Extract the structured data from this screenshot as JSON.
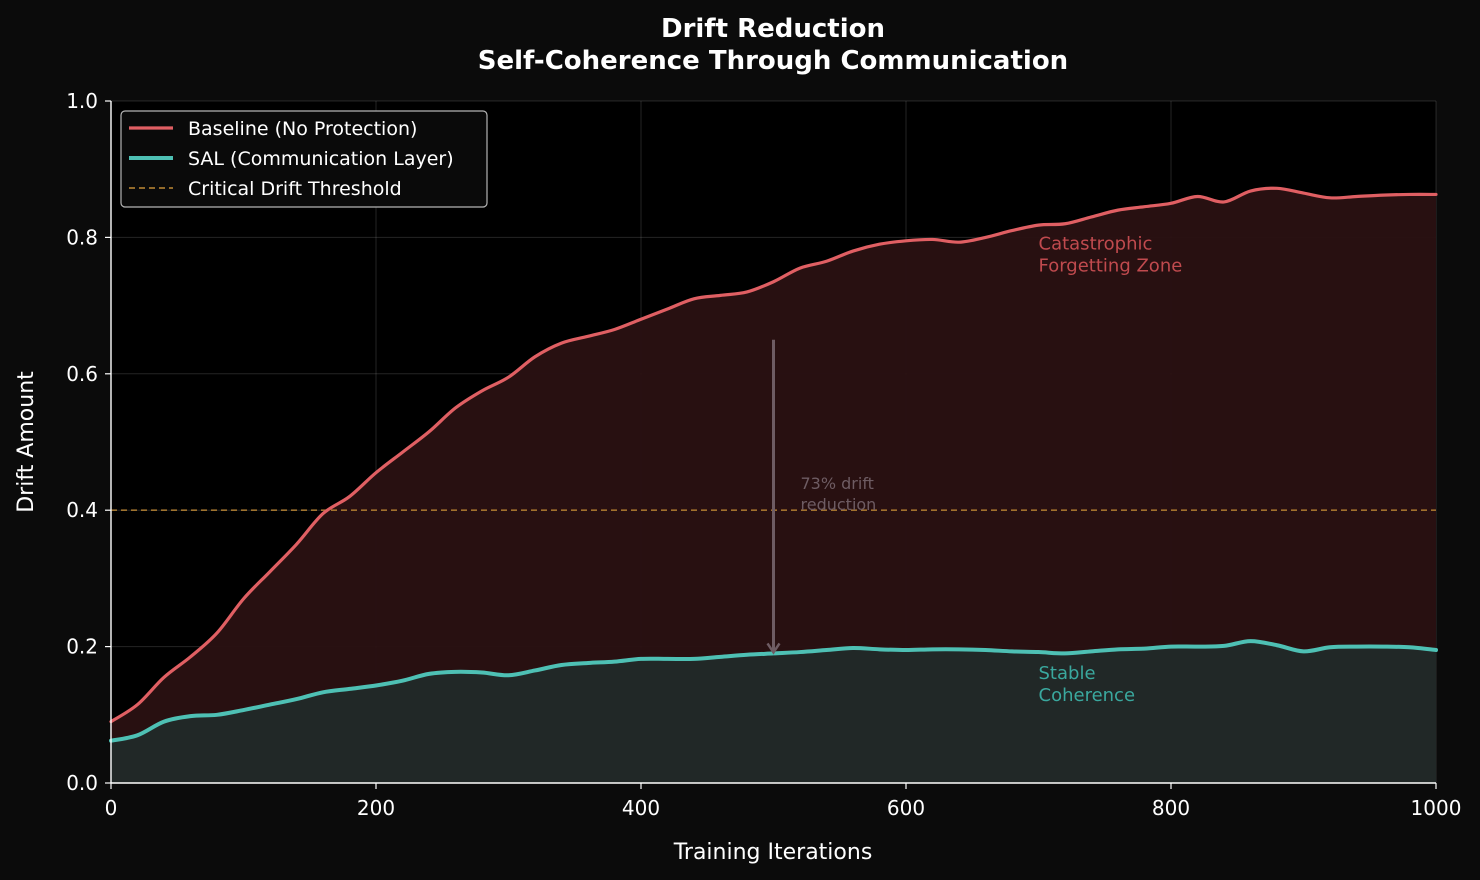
{
  "chart_data": {
    "type": "line",
    "title": "Drift Reduction",
    "subtitle": "Self-Coherence Through Communication",
    "xlabel": "Training Iterations",
    "ylabel": "Drift Amount",
    "xlim": [
      0,
      1000
    ],
    "ylim": [
      0.0,
      1.0
    ],
    "xticks": [
      0,
      200,
      400,
      600,
      800,
      1000
    ],
    "yticks": [
      0.0,
      0.2,
      0.4,
      0.6,
      0.8,
      1.0
    ],
    "ytick_labels": [
      "0.0",
      "0.2",
      "0.4",
      "0.6",
      "0.8",
      "1.0"
    ],
    "grid": true,
    "legend_position": "top-left",
    "x": [
      0,
      20,
      40,
      60,
      80,
      100,
      120,
      140,
      160,
      180,
      200,
      220,
      240,
      260,
      280,
      300,
      320,
      340,
      360,
      380,
      400,
      420,
      440,
      460,
      480,
      500,
      520,
      540,
      560,
      580,
      600,
      620,
      640,
      660,
      680,
      700,
      720,
      740,
      760,
      780,
      800,
      820,
      840,
      860,
      880,
      900,
      920,
      940,
      960,
      980,
      1000
    ],
    "series": [
      {
        "name": "Baseline (No Protection)",
        "color": "#e05f63",
        "values": [
          0.09,
          0.115,
          0.155,
          0.185,
          0.22,
          0.27,
          0.31,
          0.35,
          0.395,
          0.42,
          0.455,
          0.485,
          0.515,
          0.55,
          0.575,
          0.595,
          0.625,
          0.645,
          0.655,
          0.665,
          0.68,
          0.695,
          0.71,
          0.715,
          0.72,
          0.735,
          0.755,
          0.765,
          0.78,
          0.79,
          0.795,
          0.797,
          0.793,
          0.8,
          0.81,
          0.818,
          0.82,
          0.83,
          0.84,
          0.845,
          0.85,
          0.86,
          0.852,
          0.868,
          0.872,
          0.865,
          0.858,
          0.86,
          0.862,
          0.863,
          0.863
        ]
      },
      {
        "name": "SAL (Communication Layer)",
        "color": "#4ec0b4",
        "values": [
          0.062,
          0.07,
          0.09,
          0.098,
          0.1,
          0.107,
          0.115,
          0.123,
          0.133,
          0.138,
          0.143,
          0.15,
          0.16,
          0.163,
          0.162,
          0.158,
          0.165,
          0.173,
          0.176,
          0.178,
          0.182,
          0.182,
          0.182,
          0.185,
          0.188,
          0.19,
          0.192,
          0.195,
          0.198,
          0.196,
          0.195,
          0.196,
          0.196,
          0.195,
          0.193,
          0.192,
          0.19,
          0.193,
          0.196,
          0.197,
          0.2,
          0.2,
          0.201,
          0.208,
          0.202,
          0.193,
          0.199,
          0.2,
          0.2,
          0.199,
          0.195
        ]
      }
    ],
    "threshold": {
      "name": "Critical Drift Threshold",
      "value": 0.4,
      "color": "#c08a35"
    },
    "annotations": {
      "forgetting_zone": {
        "lines": [
          "Catastrophic",
          "Forgetting Zone"
        ],
        "x": 700,
        "y": 0.8,
        "color": "#c04a4e"
      },
      "stable_coherence": {
        "lines": [
          "Stable",
          "Coherence"
        ],
        "x": 700,
        "y": 0.17,
        "color": "#3aa89e"
      },
      "reduction_arrow": {
        "x": 500,
        "y_start": 0.65,
        "y_end": 0.19,
        "lines": [
          "73% drift",
          "reduction"
        ],
        "color": "#6e5c63"
      }
    }
  }
}
